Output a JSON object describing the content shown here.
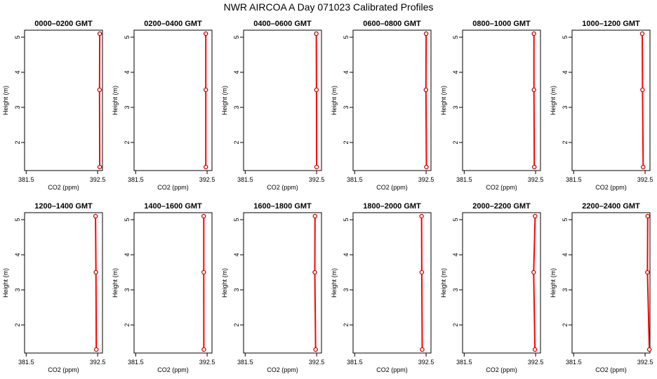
{
  "title": "NWR AIRCOA A  Day 071023  Calibrated Profiles",
  "colors": {
    "line": "#ff0000",
    "marker": "#cc0000",
    "axis": "#000000"
  },
  "chart_data": [
    {
      "type": "line",
      "title": "0000–0200 GMT",
      "xlabel": "CO2 (ppm)",
      "ylabel": "Height (m)",
      "xlim": [
        381.25,
        393.25
      ],
      "ylim": [
        1.2,
        5.2
      ],
      "xticks": [
        381.5,
        392.5
      ],
      "xtick_labels": [
        "381.5",
        "392.5"
      ],
      "yticks": [
        2,
        3,
        4,
        5
      ],
      "ytick_labels": [
        "2",
        "3",
        "4",
        "5"
      ],
      "x": [
        392.83,
        392.8,
        392.83
      ],
      "y": [
        1.3,
        3.5,
        5.1
      ]
    },
    {
      "type": "line",
      "title": "0200–0400 GMT",
      "xlabel": "CO2 (ppm)",
      "ylabel": "Height (m)",
      "xlim": [
        381.25,
        393.25
      ],
      "ylim": [
        1.2,
        5.2
      ],
      "xticks": [
        381.5,
        392.5
      ],
      "xtick_labels": [
        "381.5",
        "392.5"
      ],
      "yticks": [
        2,
        3,
        4,
        5
      ],
      "ytick_labels": [
        "2",
        "3",
        "4",
        "5"
      ],
      "x": [
        392.3,
        392.3,
        392.3
      ],
      "y": [
        1.3,
        3.5,
        5.1
      ]
    },
    {
      "type": "line",
      "title": "0400–0600 GMT",
      "xlabel": "CO2 (ppm)",
      "ylabel": "Height (m)",
      "xlim": [
        381.25,
        393.25
      ],
      "ylim": [
        1.2,
        5.2
      ],
      "xticks": [
        381.5,
        392.5
      ],
      "xtick_labels": [
        "381.5",
        "392.5"
      ],
      "yticks": [
        2,
        3,
        4,
        5
      ],
      "ytick_labels": [
        "2",
        "3",
        "4",
        "5"
      ],
      "x": [
        392.5,
        392.48,
        392.45
      ],
      "y": [
        1.3,
        3.5,
        5.1
      ]
    },
    {
      "type": "line",
      "title": "0600–0800 GMT",
      "xlabel": "CO2 (ppm)",
      "ylabel": "Height (m)",
      "xlim": [
        381.25,
        393.25
      ],
      "ylim": [
        1.2,
        5.2
      ],
      "xticks": [
        381.5,
        392.5
      ],
      "xtick_labels": [
        "381.5",
        "392.5"
      ],
      "yticks": [
        2,
        3,
        4,
        5
      ],
      "ytick_labels": [
        "2",
        "3",
        "4",
        "5"
      ],
      "x": [
        392.55,
        392.47,
        392.5
      ],
      "y": [
        1.3,
        3.5,
        5.1
      ]
    },
    {
      "type": "line",
      "title": "0800–1000 GMT",
      "xlabel": "CO2 (ppm)",
      "ylabel": "Height (m)",
      "xlim": [
        381.25,
        393.25
      ],
      "ylim": [
        1.2,
        5.2
      ],
      "xticks": [
        381.5,
        392.5
      ],
      "xtick_labels": [
        "381.5",
        "392.5"
      ],
      "yticks": [
        2,
        3,
        4,
        5
      ],
      "ytick_labels": [
        "2",
        "3",
        "4",
        "5"
      ],
      "x": [
        392.3,
        392.24,
        392.24
      ],
      "y": [
        1.3,
        3.5,
        5.1
      ]
    },
    {
      "type": "line",
      "title": "1000–1200 GMT",
      "xlabel": "CO2 (ppm)",
      "ylabel": "Height (m)",
      "xlim": [
        381.25,
        393.25
      ],
      "ylim": [
        1.2,
        5.2
      ],
      "xticks": [
        381.5,
        392.5
      ],
      "xtick_labels": [
        "381.5",
        "392.5"
      ],
      "yticks": [
        2,
        3,
        4,
        5
      ],
      "ytick_labels": [
        "2",
        "3",
        "4",
        "5"
      ],
      "x": [
        392.2,
        392.1,
        392.06
      ],
      "y": [
        1.3,
        3.5,
        5.1
      ]
    },
    {
      "type": "line",
      "title": "1200–1400 GMT",
      "xlabel": "CO2 (ppm)",
      "ylabel": "Height (m)",
      "xlim": [
        381.25,
        393.25
      ],
      "ylim": [
        1.2,
        5.2
      ],
      "xticks": [
        381.5,
        392.5
      ],
      "xtick_labels": [
        "381.5",
        "392.5"
      ],
      "yticks": [
        2,
        3,
        4,
        5
      ],
      "ytick_labels": [
        "2",
        "3",
        "4",
        "5"
      ],
      "x": [
        392.3,
        392.24,
        392.18
      ],
      "y": [
        1.3,
        3.5,
        5.1
      ]
    },
    {
      "type": "line",
      "title": "1400–1600 GMT",
      "xlabel": "CO2 (ppm)",
      "ylabel": "Height (m)",
      "xlim": [
        381.25,
        393.25
      ],
      "ylim": [
        1.2,
        5.2
      ],
      "xticks": [
        381.5,
        392.5
      ],
      "xtick_labels": [
        "381.5",
        "392.5"
      ],
      "yticks": [
        2,
        3,
        4,
        5
      ],
      "ytick_labels": [
        "2",
        "3",
        "4",
        "5"
      ],
      "x": [
        392.0,
        391.98,
        391.98
      ],
      "y": [
        1.3,
        3.5,
        5.1
      ]
    },
    {
      "type": "line",
      "title": "1600–1800 GMT",
      "xlabel": "CO2 (ppm)",
      "ylabel": "Height (m)",
      "xlim": [
        381.25,
        393.25
      ],
      "ylim": [
        1.2,
        5.2
      ],
      "xticks": [
        381.5,
        392.5
      ],
      "xtick_labels": [
        "381.5",
        "392.5"
      ],
      "yticks": [
        2,
        3,
        4,
        5
      ],
      "ytick_labels": [
        "2",
        "3",
        "4",
        "5"
      ],
      "x": [
        392.35,
        392.22,
        392.26
      ],
      "y": [
        1.3,
        3.5,
        5.1
      ]
    },
    {
      "type": "line",
      "title": "1800–2000 GMT",
      "xlabel": "CO2 (ppm)",
      "ylabel": "Height (m)",
      "xlim": [
        381.25,
        393.25
      ],
      "ylim": [
        1.2,
        5.2
      ],
      "xticks": [
        381.5,
        392.5
      ],
      "xtick_labels": [
        "381.5",
        "392.5"
      ],
      "yticks": [
        2,
        3,
        4,
        5
      ],
      "ytick_labels": [
        "2",
        "3",
        "4",
        "5"
      ],
      "x": [
        391.9,
        391.83,
        391.8
      ],
      "y": [
        1.3,
        3.5,
        5.1
      ]
    },
    {
      "type": "line",
      "title": "2000–2200 GMT",
      "xlabel": "CO2 (ppm)",
      "ylabel": "Height (m)",
      "xlim": [
        381.25,
        393.25
      ],
      "ylim": [
        1.2,
        5.2
      ],
      "xticks": [
        381.5,
        392.5
      ],
      "xtick_labels": [
        "381.5",
        "392.5"
      ],
      "yticks": [
        2,
        3,
        4,
        5
      ],
      "ytick_labels": [
        "2",
        "3",
        "4",
        "5"
      ],
      "x": [
        392.4,
        392.2,
        392.43
      ],
      "y": [
        1.3,
        3.5,
        5.1
      ]
    },
    {
      "type": "line",
      "title": "2200–2400 GMT",
      "xlabel": "CO2 (ppm)",
      "ylabel": "Height (m)",
      "xlim": [
        381.25,
        393.25
      ],
      "ylim": [
        1.2,
        5.2
      ],
      "xticks": [
        381.5,
        392.5
      ],
      "xtick_labels": [
        "381.5",
        "392.5"
      ],
      "yticks": [
        2,
        3,
        4,
        5
      ],
      "ytick_labels": [
        "2",
        "3",
        "4",
        "5"
      ],
      "x": [
        393.15,
        392.86,
        392.9
      ],
      "y": [
        1.3,
        3.5,
        5.1
      ]
    }
  ]
}
